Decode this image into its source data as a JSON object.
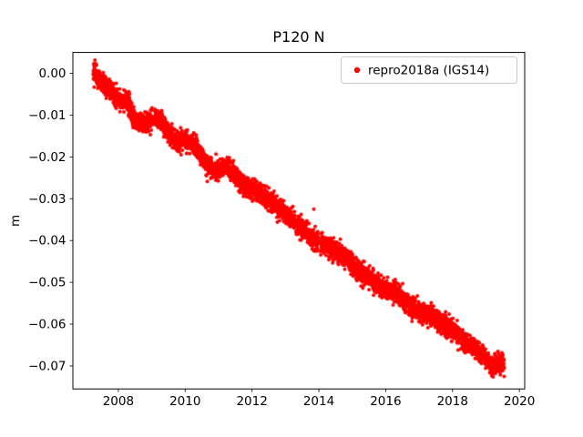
{
  "chart_data": {
    "type": "scatter",
    "title": "P120 N",
    "xlabel": "",
    "ylabel": "m",
    "xlim": [
      2006.64,
      2020.16
    ],
    "ylim": [
      -0.0755,
      0.005
    ],
    "grid": false,
    "xticks": [
      2008,
      2010,
      2012,
      2014,
      2016,
      2018,
      2020
    ],
    "xtick_labels": [
      "2008",
      "2010",
      "2012",
      "2014",
      "2016",
      "2018",
      "2020"
    ],
    "yticks": [
      0,
      -0.01,
      -0.02,
      -0.03,
      -0.04,
      -0.05,
      -0.06,
      -0.07
    ],
    "ytick_labels": [
      "0.00",
      "−0.01",
      "−0.02",
      "−0.03",
      "−0.04",
      "−0.05",
      "−0.06",
      "−0.07"
    ],
    "legend": {
      "position": "upper right",
      "entries": [
        {
          "label": "repro2018a (IGS14)",
          "marker": "dot",
          "color": "#ff0000"
        }
      ]
    },
    "series": [
      {
        "name": "repro2018a (IGS14)",
        "color": "#ff0000",
        "marker_size_px": 2.0,
        "sampling_per_year": 365,
        "noise_std": 0.0012,
        "seed": 42,
        "x_start": 2007.25,
        "x_end": 2019.55,
        "trend_anchors_x": [
          2007.25,
          2007.45,
          2007.8,
          2008.0,
          2008.25,
          2008.5,
          2008.8,
          2009.1,
          2009.4,
          2009.75,
          2010.0,
          2010.3,
          2010.65,
          2010.9,
          2011.2,
          2011.5,
          2011.8,
          2012.1,
          2012.4,
          2012.75,
          2013.0,
          2013.3,
          2013.6,
          2013.9,
          2014.2,
          2014.5,
          2014.8,
          2015.1,
          2015.4,
          2015.7,
          2016.0,
          2016.3,
          2016.6,
          2016.9,
          2017.2,
          2017.5,
          2017.8,
          2018.1,
          2018.4,
          2018.7,
          2019.0,
          2019.2,
          2019.4,
          2019.55
        ],
        "trend_anchors_y": [
          0.001,
          -0.002,
          -0.0045,
          -0.006,
          -0.0065,
          -0.0115,
          -0.012,
          -0.0105,
          -0.013,
          -0.0165,
          -0.016,
          -0.017,
          -0.022,
          -0.0235,
          -0.022,
          -0.0245,
          -0.027,
          -0.028,
          -0.0295,
          -0.032,
          -0.0335,
          -0.036,
          -0.038,
          -0.04,
          -0.041,
          -0.0425,
          -0.044,
          -0.0465,
          -0.0485,
          -0.05,
          -0.052,
          -0.0525,
          -0.0545,
          -0.0565,
          -0.0575,
          -0.059,
          -0.0605,
          -0.062,
          -0.0645,
          -0.066,
          -0.0685,
          -0.07,
          -0.0695,
          -0.07
        ],
        "gaps": [
          [
            2009.02,
            2009.07
          ],
          [
            2013.98,
            2014.04
          ]
        ],
        "outliers": [
          {
            "x": 2013.85,
            "y": -0.0325
          }
        ]
      }
    ]
  }
}
